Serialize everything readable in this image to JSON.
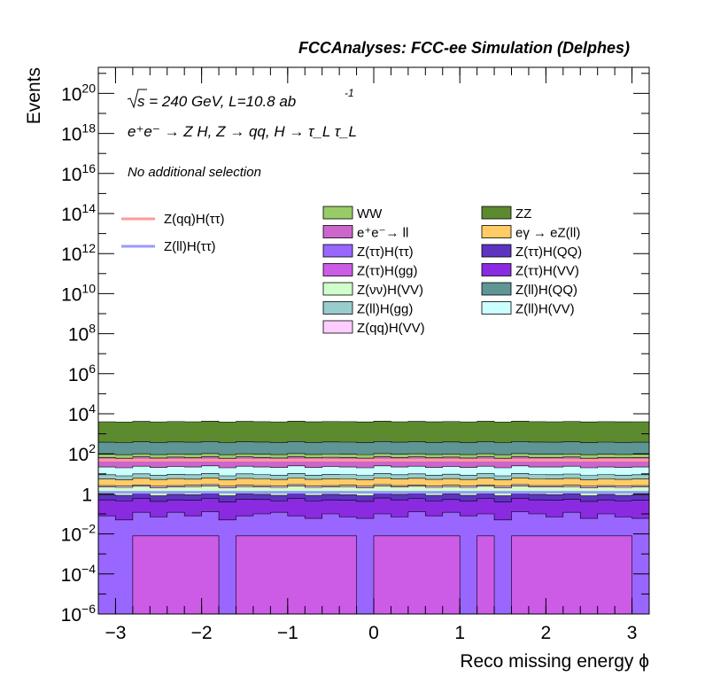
{
  "header": {
    "title": "FCCAnalyses: FCC-ee Simulation (Delphes)",
    "sqrt_s": "s",
    "energy_lumi": " = 240 GeV, L=10.8 ab",
    "lumi_exp": "-1",
    "process": "e⁺e⁻ → Z H, Z → qq, H → τ_L τ_L",
    "selection": "No additional selection"
  },
  "chart_data": {
    "type": "bar",
    "stacked": true,
    "histtype": "step-filled",
    "title": "",
    "xlabel": "Reco missing energy ϕ",
    "ylabel": "Events",
    "yscale": "log",
    "xlim": [
      -3.2,
      3.2
    ],
    "ylim": [
      1e-06,
      2e+21
    ],
    "xticks": [
      -3,
      -2,
      -1,
      0,
      1,
      2,
      3
    ],
    "yticks": [
      1e-06,
      0.0001,
      0.01,
      1,
      100.0,
      10000.0,
      1000000.0,
      100000000.0,
      10000000000.0,
      1000000000000.0,
      100000000000000.0,
      1e+16,
      1e+18,
      1e+20
    ],
    "ytick_labels": [
      {
        "base": "10",
        "exp": "-6"
      },
      {
        "base": "10",
        "exp": "-4"
      },
      {
        "base": "10",
        "exp": "-2"
      },
      {
        "base": "1",
        "exp": ""
      },
      {
        "base": "10",
        "exp": "2"
      },
      {
        "base": "10",
        "exp": "4"
      },
      {
        "base": "10",
        "exp": "6"
      },
      {
        "base": "10",
        "exp": "8"
      },
      {
        "base": "10",
        "exp": "10"
      },
      {
        "base": "10",
        "exp": "12"
      },
      {
        "base": "10",
        "exp": "14"
      },
      {
        "base": "10",
        "exp": "16"
      },
      {
        "base": "10",
        "exp": "18"
      },
      {
        "base": "10",
        "exp": "20"
      }
    ],
    "grid": false,
    "legend_position": "top-right",
    "bins": 32,
    "stack_top_levels": [
      {
        "name": "Z(ττ)H(gg)",
        "color": "#cc5ce6",
        "values": [
          1e-06,
          1e-06,
          0.008,
          0.008,
          0.008,
          0.008,
          0.008,
          1e-06,
          0.008,
          0.008,
          0.008,
          0.008,
          0.008,
          0.008,
          0.008,
          1e-06,
          0.008,
          0.008,
          0.008,
          0.008,
          0.008,
          1e-06,
          0.008,
          1e-06,
          0.008,
          0.008,
          0.008,
          0.008,
          0.008,
          0.008,
          0.008,
          1e-06
        ]
      },
      {
        "name": "Z(ττ)H(ττ)",
        "color": "#9966ff",
        "values": [
          0.08,
          0.05,
          0.12,
          0.07,
          0.12,
          0.08,
          0.13,
          0.05,
          0.08,
          0.1,
          0.12,
          0.08,
          0.06,
          0.1,
          0.07,
          0.06,
          0.1,
          0.07,
          0.13,
          0.08,
          0.12,
          0.08,
          0.1,
          0.05,
          0.13,
          0.1,
          0.07,
          0.12,
          0.06,
          0.1,
          0.07,
          0.06
        ]
      },
      {
        "name": "Z(ττ)H(VV)",
        "color": "#8a2be2",
        "values": [
          0.5,
          0.45,
          0.6,
          0.42,
          0.5,
          0.48,
          0.58,
          0.4,
          0.55,
          0.52,
          0.45,
          0.6,
          0.45,
          0.5,
          0.48,
          0.42,
          0.62,
          0.5,
          0.58,
          0.45,
          0.52,
          0.44,
          0.58,
          0.4,
          0.6,
          0.5,
          0.48,
          0.55,
          0.42,
          0.5,
          0.45,
          0.48
        ]
      },
      {
        "name": "Z(ττ)H(QQ)",
        "color": "#5c34bf",
        "values": [
          0.9,
          0.85,
          1.1,
          0.8,
          0.95,
          0.9,
          1.05,
          0.8,
          1.0,
          0.95,
          0.85,
          1.1,
          0.85,
          0.95,
          0.9,
          0.8,
          1.1,
          0.95,
          1.05,
          0.85,
          1.0,
          0.85,
          1.05,
          0.8,
          1.1,
          0.95,
          0.9,
          1.0,
          0.8,
          0.95,
          0.85,
          0.9
        ]
      },
      {
        "name": "Z(νν)H(VV)",
        "color": "#d1ffcc",
        "values": [
          2.2,
          2.1,
          2.4,
          2.0,
          2.2,
          2.3,
          2.5,
          2.0,
          2.3,
          2.2,
          2.1,
          2.5,
          2.1,
          2.2,
          2.3,
          2.0,
          2.5,
          2.2,
          2.4,
          2.1,
          2.3,
          2.1,
          2.4,
          2.0,
          2.5,
          2.2,
          2.2,
          2.3,
          2.0,
          2.2,
          2.1,
          2.2
        ]
      },
      {
        "name": "Z(qq)H(VV)",
        "color": "#ffccff",
        "values": [
          2.6,
          2.5,
          2.8,
          2.4,
          2.6,
          2.7,
          2.9,
          2.4,
          2.7,
          2.6,
          2.5,
          2.9,
          2.5,
          2.6,
          2.7,
          2.4,
          2.9,
          2.6,
          2.8,
          2.5,
          2.7,
          2.5,
          2.8,
          2.4,
          2.9,
          2.6,
          2.6,
          2.7,
          2.4,
          2.6,
          2.5,
          2.6
        ]
      },
      {
        "name": "eγ → eZ(ll)",
        "color": "#ffcc66",
        "values": [
          5.5,
          5.0,
          6.0,
          5.2,
          5.8,
          5.4,
          6.3,
          5.0,
          5.9,
          5.6,
          5.2,
          6.2,
          5.3,
          5.7,
          5.6,
          5.1,
          6.2,
          5.5,
          6.0,
          5.3,
          5.8,
          5.2,
          6.1,
          5.0,
          6.3,
          5.6,
          5.5,
          5.9,
          5.0,
          5.6,
          5.3,
          5.5
        ]
      },
      {
        "name": "Z(ll)H(gg)",
        "color": "#99cccc",
        "values": [
          9,
          8,
          10,
          8.5,
          9.5,
          9,
          10.5,
          8,
          10,
          9.2,
          8.5,
          10.5,
          8.6,
          9.4,
          9.2,
          8.3,
          10.4,
          9,
          10,
          8.6,
          9.6,
          8.5,
          10.2,
          8,
          10.5,
          9.2,
          9,
          9.8,
          8.2,
          9.2,
          8.6,
          9
        ]
      },
      {
        "name": "Z(ll)H(VV)",
        "color": "#ccffff",
        "values": [
          22,
          20,
          24,
          21,
          23,
          22,
          25,
          20,
          24,
          22,
          21,
          25,
          21,
          23,
          22,
          20,
          25,
          22,
          24,
          21,
          23,
          21,
          24,
          20,
          25,
          22,
          22,
          24,
          20,
          22,
          21,
          22
        ]
      },
      {
        "name": "Z(qq)H(ττ) (line)",
        "color": "#ff9999",
        "values": []
      },
      {
        "name": "e⁺e⁻→ ll",
        "color": "#cc66cc",
        "values": [
          65,
          60,
          70,
          62,
          68,
          64,
          72,
          60,
          70,
          66,
          62,
          72,
          63,
          67,
          66,
          61,
          72,
          65,
          70,
          63,
          68,
          62,
          71,
          60,
          72,
          66,
          65,
          69,
          60,
          66,
          63,
          65
        ]
      },
      {
        "name": "WW",
        "color": "#99cc66",
        "values": [
          95,
          90,
          100,
          92,
          98,
          94,
          103,
          90,
          100,
          96,
          92,
          103,
          93,
          97,
          96,
          91,
          103,
          95,
          100,
          93,
          98,
          92,
          101,
          90,
          103,
          96,
          95,
          99,
          90,
          96,
          93,
          95
        ]
      },
      {
        "name": "Z(ll)H(QQ)",
        "color": "#5f9595",
        "values": [
          380,
          360,
          400,
          370,
          390,
          380,
          410,
          360,
          400,
          385,
          370,
          410,
          372,
          390,
          384,
          364,
          410,
          380,
          400,
          372,
          390,
          368,
          405,
          360,
          410,
          385,
          380,
          395,
          362,
          384,
          372,
          380
        ]
      },
      {
        "name": "ZZ",
        "color": "#5c8a2e",
        "values": [
          4000,
          3900,
          4200,
          3950,
          4100,
          4000,
          4300,
          3900,
          4200,
          4050,
          3950,
          4300,
          3970,
          4100,
          4050,
          3920,
          4300,
          4000,
          4200,
          3970,
          4100,
          3950,
          4250,
          3900,
          4300,
          4050,
          4000,
          4150,
          3920,
          4050,
          3970,
          4000
        ]
      }
    ],
    "lines": [
      {
        "name": "Z(qq)H(ττ)",
        "color": "#ff9999",
        "value": 48
      },
      {
        "name": "Z(ll)H(ττ)",
        "color": "#9999ff",
        "value": 1.2
      }
    ],
    "legend_lines": [
      {
        "name": "Z(qq)H(ττ)",
        "color": "#ff9999"
      },
      {
        "name": "Z(ll)H(ττ)",
        "color": "#9999ff"
      }
    ],
    "legend_col1": [
      {
        "name": "WW",
        "color": "#99cc66"
      },
      {
        "name": "e⁺e⁻→ ll",
        "color": "#cc66cc"
      },
      {
        "name": "Z(ττ)H(ττ)",
        "color": "#9966ff"
      },
      {
        "name": "Z(ττ)H(gg)",
        "color": "#cc5ce6"
      },
      {
        "name": "Z(νν)H(VV)",
        "color": "#d1ffcc"
      },
      {
        "name": "Z(ll)H(gg)",
        "color": "#99cccc"
      },
      {
        "name": "Z(qq)H(VV)",
        "color": "#ffccff"
      }
    ],
    "legend_col2": [
      {
        "name": "ZZ",
        "color": "#5c8a2e"
      },
      {
        "name": "eγ → eZ(ll)",
        "color": "#ffcc66"
      },
      {
        "name": "Z(ττ)H(QQ)",
        "color": "#5c34bf"
      },
      {
        "name": "Z(ττ)H(VV)",
        "color": "#8a2be2"
      },
      {
        "name": "Z(ll)H(QQ)",
        "color": "#5f9595"
      },
      {
        "name": "Z(ll)H(VV)",
        "color": "#ccffff"
      }
    ]
  }
}
